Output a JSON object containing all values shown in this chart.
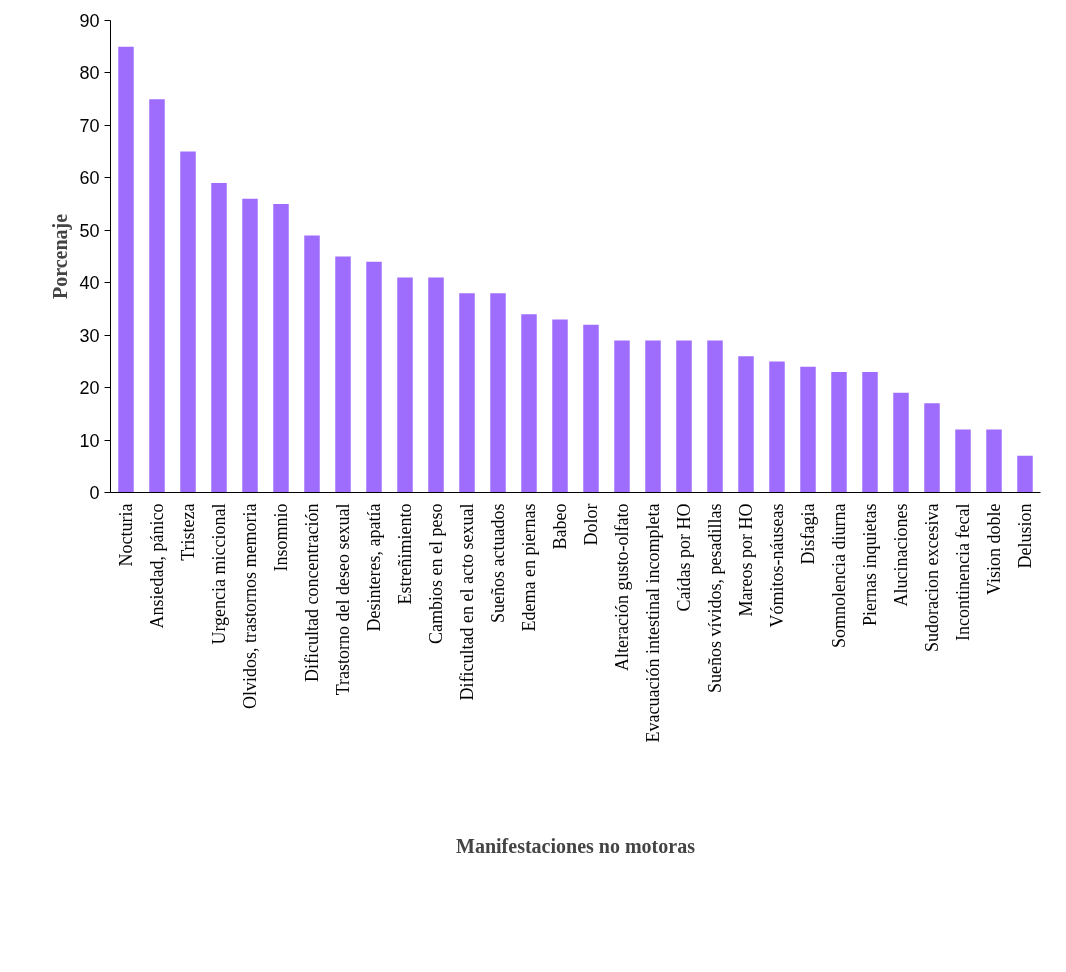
{
  "chart_data": {
    "type": "bar",
    "xlabel": "Manifestaciones no motoras",
    "ylabel": "Porcenaje",
    "categories": [
      "Nocturia",
      "Ansiedad, pánico",
      "Tristeza",
      "Urgencia miccional",
      "Olvidos, trastornos memoria",
      "Insomnio",
      "Dificultad concentración",
      "Trastorno del deseo sexual",
      "Desinteres, apatía",
      "Estreñimiento",
      "Cambios en el peso",
      "Dificultad en el acto sexual",
      "Sueños actuados",
      "Edema en piernas",
      "Babeo",
      "Dolor",
      "Alteración gusto-olfato",
      "Evacuación intestinal incompleta",
      "Caídas por HO",
      "Sueños vívidos, pesadillas",
      "Mareos por HO",
      "Vómitos-náuseas",
      "Disfagia",
      "Somnolencia diurna",
      "Piernas inquietas",
      "Alucinaciones",
      "Sudoracion excesiva",
      "Incontinencia fecal",
      "Vision doble",
      "Delusion"
    ],
    "values": [
      85,
      75,
      65,
      59,
      56,
      55,
      49,
      45,
      44,
      41,
      41,
      38,
      38,
      34,
      33,
      32,
      29,
      29,
      29,
      29,
      26,
      25,
      24,
      23,
      23,
      19,
      17,
      12,
      12,
      7
    ],
    "color": "#9f6dfd",
    "ylim": [
      0,
      90
    ],
    "yticks": [
      0,
      10,
      20,
      30,
      40,
      50,
      60,
      70,
      80,
      90
    ],
    "grid": false
  }
}
